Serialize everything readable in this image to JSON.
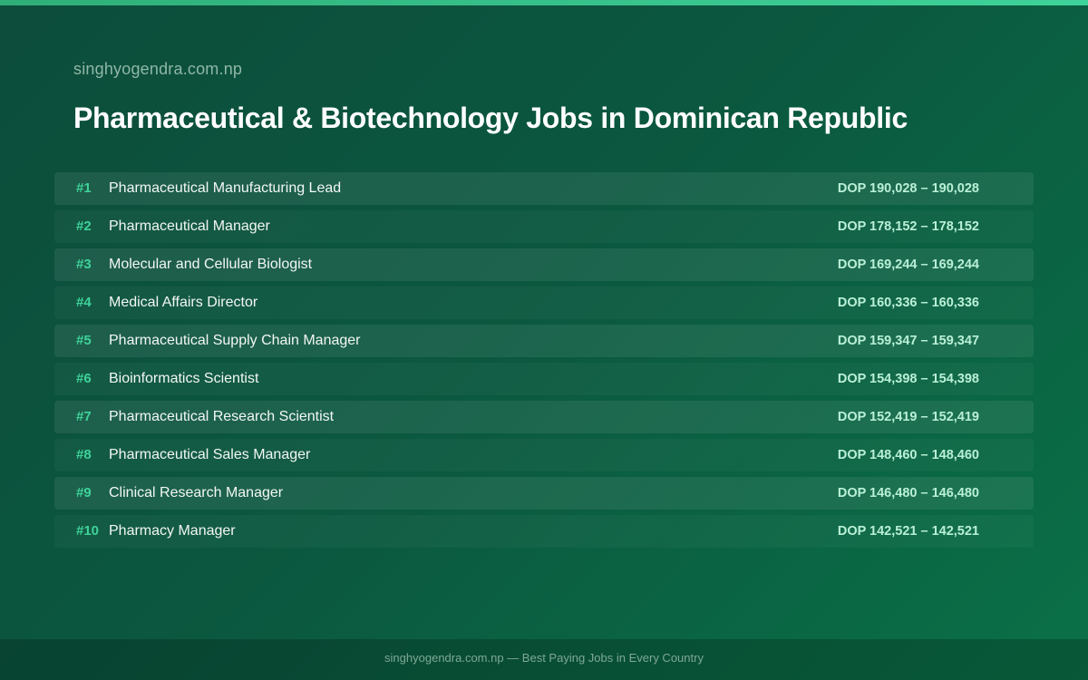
{
  "site": "singhyogendra.com.np",
  "title": "Pharmaceutical & Biotechnology Jobs in Dominican Republic",
  "jobs": [
    {
      "rank": "#1",
      "title": "Pharmaceutical Manufacturing Lead",
      "salary": "DOP 190,028 – 190,028"
    },
    {
      "rank": "#2",
      "title": "Pharmaceutical Manager",
      "salary": "DOP 178,152 – 178,152"
    },
    {
      "rank": "#3",
      "title": "Molecular and Cellular Biologist",
      "salary": "DOP 169,244 – 169,244"
    },
    {
      "rank": "#4",
      "title": "Medical Affairs Director",
      "salary": "DOP 160,336 – 160,336"
    },
    {
      "rank": "#5",
      "title": "Pharmaceutical Supply Chain Manager",
      "salary": "DOP 159,347 – 159,347"
    },
    {
      "rank": "#6",
      "title": "Bioinformatics Scientist",
      "salary": "DOP 154,398 – 154,398"
    },
    {
      "rank": "#7",
      "title": "Pharmaceutical Research Scientist",
      "salary": "DOP 152,419 – 152,419"
    },
    {
      "rank": "#8",
      "title": "Pharmaceutical Sales Manager",
      "salary": "DOP 148,460 – 148,460"
    },
    {
      "rank": "#9",
      "title": "Clinical Research Manager",
      "salary": "DOP 146,480 – 146,480"
    },
    {
      "rank": "#10",
      "title": "Pharmacy Manager",
      "salary": "DOP 142,521 – 142,521"
    }
  ],
  "footer": "singhyogendra.com.np — Best Paying Jobs in Every Country",
  "colors": {
    "accent": "#3ed39a",
    "background": "#0b573f",
    "salary": "#b9f0d7"
  }
}
